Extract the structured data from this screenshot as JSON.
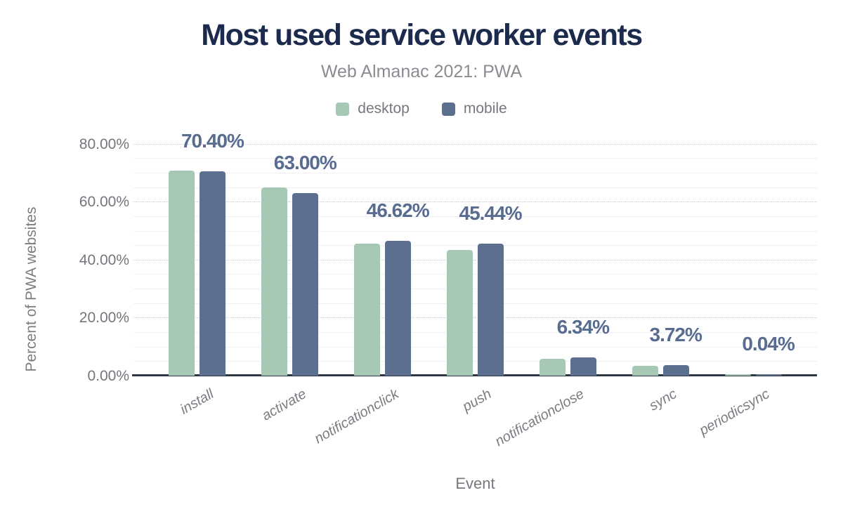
{
  "chart_data": {
    "type": "bar",
    "title": "Most used service worker events",
    "subtitle": "Web Almanac 2021: PWA",
    "xlabel": "Event",
    "ylabel": "Percent of PWA websites",
    "categories": [
      "install",
      "activate",
      "notificationclick",
      "push",
      "notificationclose",
      "sync",
      "periodicsync"
    ],
    "series": [
      {
        "name": "desktop",
        "color": "#a7c8b5",
        "values": [
          70.8,
          65.0,
          45.6,
          43.4,
          5.8,
          3.4,
          0.04
        ]
      },
      {
        "name": "mobile",
        "color": "#5c6f8e",
        "values": [
          70.4,
          63.0,
          46.62,
          45.44,
          6.34,
          3.72,
          0.04
        ]
      }
    ],
    "bar_labels": [
      "70.40%",
      "63.00%",
      "46.62%",
      "45.44%",
      "6.34%",
      "3.72%",
      "0.04%"
    ],
    "bar_labels_series": "mobile",
    "yticks": [
      {
        "value": 0,
        "label": "0.00%"
      },
      {
        "value": 20,
        "label": "20.00%"
      },
      {
        "value": 40,
        "label": "40.00%"
      },
      {
        "value": 60,
        "label": "60.00%"
      },
      {
        "value": 80,
        "label": "80.00%"
      }
    ],
    "ylim": [
      0,
      85
    ],
    "grid": {
      "minor_every": 5,
      "major_every": 20,
      "major_style": "dotted",
      "minor_style": "solid"
    },
    "legend_position": "top",
    "colors": {
      "title": "#1b2a4d",
      "subtitle": "#898d92",
      "axis_text": "#75787d",
      "value_label": "#586c90",
      "axis_line": "#2e3643",
      "background": "#ffffff"
    }
  }
}
